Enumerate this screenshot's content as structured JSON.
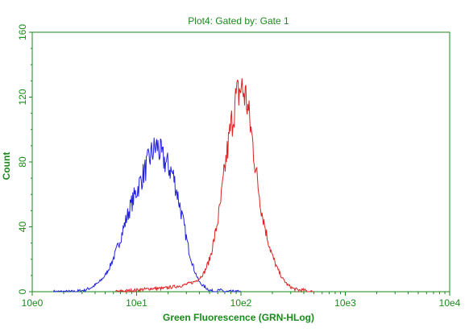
{
  "chart_data": {
    "type": "line",
    "title": "Plot4:  Gated by: Gate 1",
    "xlabel": "Green Fluorescence (GRN-HLog)",
    "ylabel": "Count",
    "x_scale": "log",
    "xlim": [
      1,
      10000
    ],
    "ylim": [
      0,
      160
    ],
    "xticks": [
      "10e0",
      "10e1",
      "10e2",
      "10e3",
      "10e4"
    ],
    "yticks": [
      "0",
      "40",
      "80",
      "120",
      "160"
    ],
    "grid": false,
    "legend": "none",
    "colors": {
      "text": "#1a8a1a",
      "frame": "#1a8a1a"
    },
    "series": [
      {
        "color": "#2222dd",
        "x": [
          1.6,
          2.5,
          3.2,
          3.8,
          4.4,
          5.0,
          5.6,
          6.3,
          7.1,
          7.9,
          8.9,
          10.0,
          11.2,
          12.6,
          14.1,
          15.8,
          17.8,
          19.9,
          22.4,
          25.1,
          28.2,
          31.6,
          35.5,
          39.8,
          44.7,
          50.1,
          56.2,
          63.1,
          70.8,
          79.4,
          89.1,
          100
        ],
        "y": [
          0,
          0,
          1,
          3,
          6,
          10,
          16,
          24,
          34,
          44,
          54,
          62,
          70,
          78,
          86,
          90,
          82,
          78,
          72,
          58,
          42,
          26,
          14,
          6,
          3,
          1,
          0,
          1,
          0,
          0,
          0,
          0
        ]
      },
      {
        "color": "#dd2222",
        "x": [
          6.3,
          10.0,
          14.1,
          17.8,
          22.4,
          28.2,
          35.5,
          39.8,
          44.7,
          50.1,
          56.2,
          63.1,
          70.8,
          79.4,
          89.1,
          100,
          112,
          126,
          141,
          158,
          178,
          200,
          224,
          251,
          282,
          316,
          355,
          398,
          447,
          501
        ],
        "y": [
          0,
          1,
          2,
          2,
          3,
          4,
          6,
          8,
          12,
          20,
          34,
          52,
          78,
          100,
          118,
          126,
          120,
          98,
          72,
          50,
          34,
          22,
          14,
          8,
          4,
          2,
          1,
          1,
          0,
          0
        ]
      }
    ]
  }
}
